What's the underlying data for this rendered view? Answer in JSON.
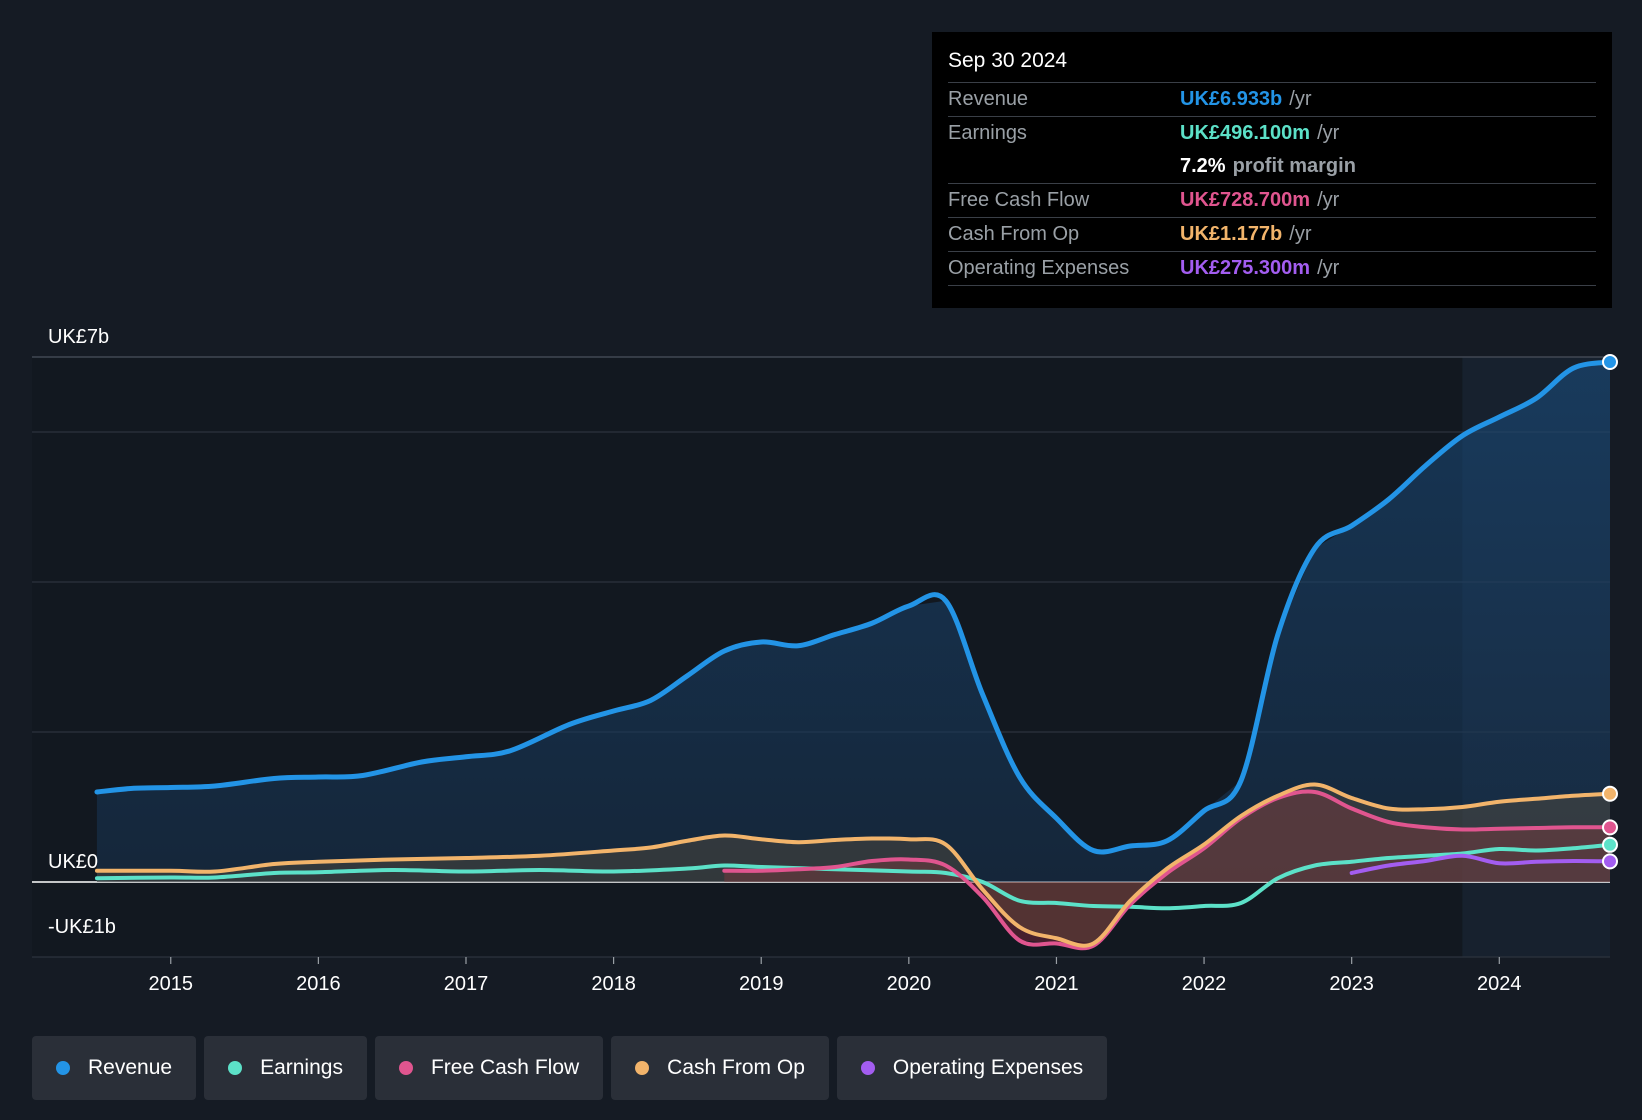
{
  "chart_data": {
    "type": "line",
    "title": "",
    "xlabel": "",
    "ylabel": "",
    "ylim": [
      -1,
      7
    ],
    "y_labels": {
      "top": "UK£7b",
      "zero": "UK£0",
      "bottom": "-UK£1b"
    },
    "x_ticks": [
      "2015",
      "2016",
      "2017",
      "2018",
      "2019",
      "2020",
      "2021",
      "2022",
      "2023",
      "2024"
    ],
    "xlim": [
      2014.06,
      2024.75
    ],
    "highlight_start": 2023.75,
    "series": [
      {
        "name": "Revenue",
        "color": "#2394e6",
        "fill": true,
        "points": [
          [
            2014.5,
            1.2
          ],
          [
            2014.75,
            1.25
          ],
          [
            2015.0,
            1.26
          ],
          [
            2015.3,
            1.28
          ],
          [
            2015.7,
            1.38
          ],
          [
            2016.0,
            1.4
          ],
          [
            2016.3,
            1.42
          ],
          [
            2016.7,
            1.6
          ],
          [
            2017.0,
            1.67
          ],
          [
            2017.3,
            1.75
          ],
          [
            2017.7,
            2.1
          ],
          [
            2018.0,
            2.28
          ],
          [
            2018.25,
            2.42
          ],
          [
            2018.5,
            2.75
          ],
          [
            2018.75,
            3.08
          ],
          [
            2019.0,
            3.2
          ],
          [
            2019.25,
            3.15
          ],
          [
            2019.5,
            3.3
          ],
          [
            2019.75,
            3.45
          ],
          [
            2020.0,
            3.68
          ],
          [
            2020.25,
            3.75
          ],
          [
            2020.5,
            2.5
          ],
          [
            2020.75,
            1.4
          ],
          [
            2021.0,
            0.85
          ],
          [
            2021.25,
            0.42
          ],
          [
            2021.5,
            0.48
          ],
          [
            2021.75,
            0.55
          ],
          [
            2022.0,
            0.95
          ],
          [
            2022.25,
            1.35
          ],
          [
            2022.5,
            3.3
          ],
          [
            2022.75,
            4.45
          ],
          [
            2023.0,
            4.75
          ],
          [
            2023.25,
            5.1
          ],
          [
            2023.5,
            5.55
          ],
          [
            2023.75,
            5.95
          ],
          [
            2024.0,
            6.2
          ],
          [
            2024.25,
            6.45
          ],
          [
            2024.5,
            6.85
          ],
          [
            2024.75,
            6.933
          ]
        ]
      },
      {
        "name": "Earnings",
        "color": "#5ce1c8",
        "fill": false,
        "points": [
          [
            2014.5,
            0.05
          ],
          [
            2015.0,
            0.06
          ],
          [
            2015.3,
            0.06
          ],
          [
            2015.7,
            0.12
          ],
          [
            2016.0,
            0.13
          ],
          [
            2016.5,
            0.16
          ],
          [
            2017.0,
            0.14
          ],
          [
            2017.5,
            0.16
          ],
          [
            2018.0,
            0.14
          ],
          [
            2018.5,
            0.18
          ],
          [
            2018.75,
            0.22
          ],
          [
            2019.0,
            0.2
          ],
          [
            2019.5,
            0.17
          ],
          [
            2020.0,
            0.14
          ],
          [
            2020.25,
            0.12
          ],
          [
            2020.5,
            0.0
          ],
          [
            2020.75,
            -0.25
          ],
          [
            2021.0,
            -0.28
          ],
          [
            2021.25,
            -0.32
          ],
          [
            2021.5,
            -0.33
          ],
          [
            2021.75,
            -0.35
          ],
          [
            2022.0,
            -0.32
          ],
          [
            2022.25,
            -0.28
          ],
          [
            2022.5,
            0.05
          ],
          [
            2022.75,
            0.22
          ],
          [
            2023.0,
            0.27
          ],
          [
            2023.25,
            0.32
          ],
          [
            2023.5,
            0.35
          ],
          [
            2023.75,
            0.38
          ],
          [
            2024.0,
            0.44
          ],
          [
            2024.25,
            0.42
          ],
          [
            2024.5,
            0.45
          ],
          [
            2024.75,
            0.4961
          ]
        ]
      },
      {
        "name": "Free Cash Flow",
        "color": "#e0558f",
        "fill": true,
        "points": [
          [
            2018.75,
            0.15
          ],
          [
            2019.0,
            0.15
          ],
          [
            2019.25,
            0.17
          ],
          [
            2019.5,
            0.2
          ],
          [
            2019.75,
            0.28
          ],
          [
            2020.0,
            0.3
          ],
          [
            2020.25,
            0.22
          ],
          [
            2020.5,
            -0.2
          ],
          [
            2020.75,
            -0.78
          ],
          [
            2021.0,
            -0.82
          ],
          [
            2021.25,
            -0.85
          ],
          [
            2021.5,
            -0.3
          ],
          [
            2021.75,
            0.12
          ],
          [
            2022.0,
            0.45
          ],
          [
            2022.25,
            0.85
          ],
          [
            2022.5,
            1.12
          ],
          [
            2022.75,
            1.2
          ],
          [
            2023.0,
            0.98
          ],
          [
            2023.25,
            0.8
          ],
          [
            2023.5,
            0.73
          ],
          [
            2023.75,
            0.7
          ],
          [
            2024.0,
            0.71
          ],
          [
            2024.25,
            0.72
          ],
          [
            2024.5,
            0.73
          ],
          [
            2024.75,
            0.7287
          ]
        ]
      },
      {
        "name": "Cash From Op",
        "color": "#f2b46b",
        "fill": true,
        "points": [
          [
            2014.5,
            0.15
          ],
          [
            2015.0,
            0.15
          ],
          [
            2015.3,
            0.14
          ],
          [
            2015.7,
            0.24
          ],
          [
            2016.0,
            0.27
          ],
          [
            2016.5,
            0.3
          ],
          [
            2017.0,
            0.32
          ],
          [
            2017.5,
            0.35
          ],
          [
            2018.0,
            0.42
          ],
          [
            2018.25,
            0.46
          ],
          [
            2018.5,
            0.55
          ],
          [
            2018.75,
            0.62
          ],
          [
            2019.0,
            0.57
          ],
          [
            2019.25,
            0.53
          ],
          [
            2019.5,
            0.56
          ],
          [
            2019.75,
            0.58
          ],
          [
            2020.0,
            0.57
          ],
          [
            2020.25,
            0.5
          ],
          [
            2020.5,
            -0.1
          ],
          [
            2020.75,
            -0.6
          ],
          [
            2021.0,
            -0.75
          ],
          [
            2021.25,
            -0.82
          ],
          [
            2021.5,
            -0.25
          ],
          [
            2021.75,
            0.18
          ],
          [
            2022.0,
            0.5
          ],
          [
            2022.25,
            0.88
          ],
          [
            2022.5,
            1.15
          ],
          [
            2022.75,
            1.3
          ],
          [
            2023.0,
            1.12
          ],
          [
            2023.25,
            0.98
          ],
          [
            2023.5,
            0.97
          ],
          [
            2023.75,
            1.0
          ],
          [
            2024.0,
            1.07
          ],
          [
            2024.25,
            1.11
          ],
          [
            2024.5,
            1.15
          ],
          [
            2024.75,
            1.177
          ]
        ]
      },
      {
        "name": "Operating Expenses",
        "color": "#a35df0",
        "fill": false,
        "points": [
          [
            2023.0,
            0.12
          ],
          [
            2023.25,
            0.22
          ],
          [
            2023.5,
            0.28
          ],
          [
            2023.75,
            0.35
          ],
          [
            2024.0,
            0.25
          ],
          [
            2024.25,
            0.27
          ],
          [
            2024.5,
            0.28
          ],
          [
            2024.75,
            0.2753
          ]
        ]
      }
    ]
  },
  "tooltip": {
    "date": "Sep 30 2024",
    "rows": [
      {
        "label": "Revenue",
        "value": "UK£6.933b",
        "unit": "/yr",
        "color": "#2394e6"
      },
      {
        "label": "Earnings",
        "value": "UK£496.100m",
        "unit": "/yr",
        "color": "#5ce1c8"
      },
      {
        "label": "Free Cash Flow",
        "value": "UK£728.700m",
        "unit": "/yr",
        "color": "#e0558f"
      },
      {
        "label": "Cash From Op",
        "value": "UK£1.177b",
        "unit": "/yr",
        "color": "#f2b46b"
      },
      {
        "label": "Operating Expenses",
        "value": "UK£275.300m",
        "unit": "/yr",
        "color": "#a35df0"
      }
    ],
    "profit_margin": {
      "value": "7.2%",
      "label": "profit margin"
    }
  },
  "legend": [
    {
      "label": "Revenue",
      "color": "#2394e6"
    },
    {
      "label": "Earnings",
      "color": "#5ce1c8"
    },
    {
      "label": "Free Cash Flow",
      "color": "#e0558f"
    },
    {
      "label": "Cash From Op",
      "color": "#f2b46b"
    },
    {
      "label": "Operating Expenses",
      "color": "#a35df0"
    }
  ]
}
